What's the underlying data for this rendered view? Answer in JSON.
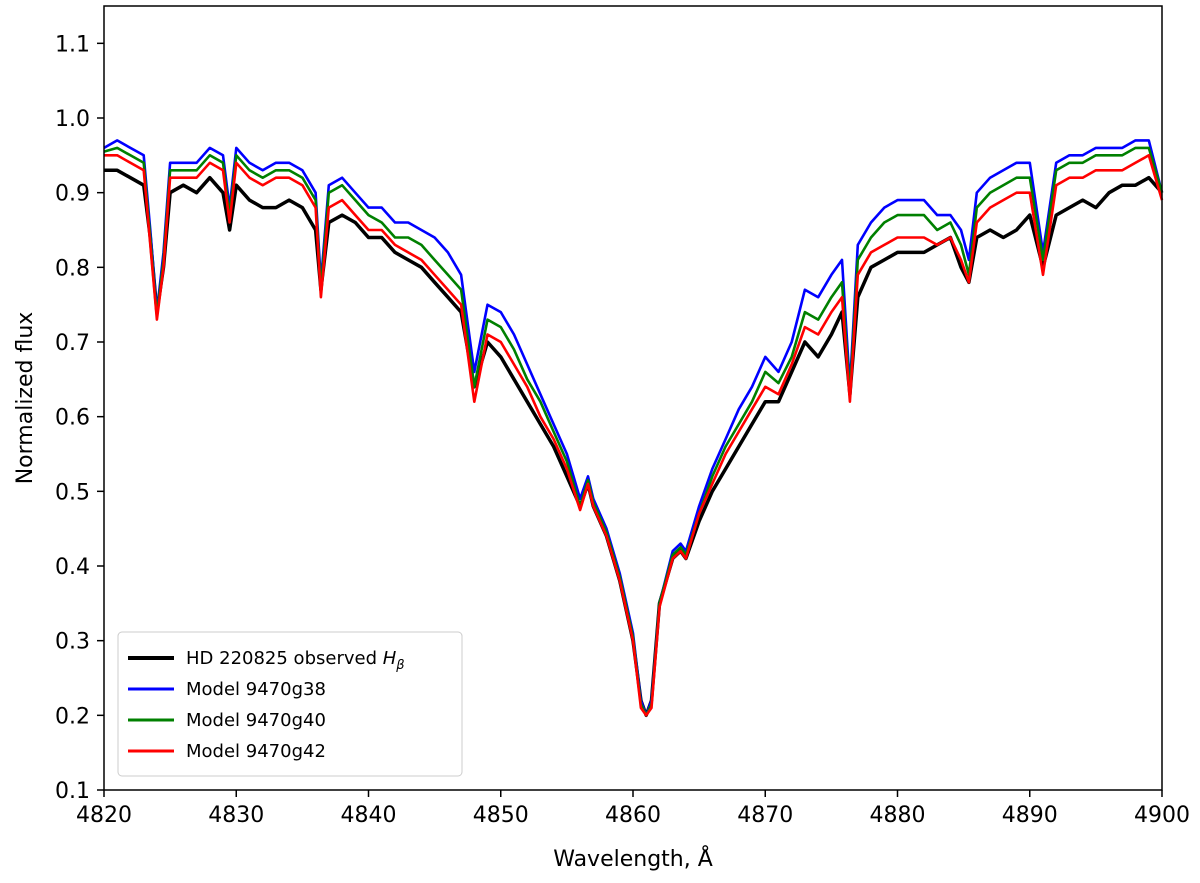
{
  "chart_data": {
    "type": "line",
    "title": "",
    "xlabel": "Wavelength, Å",
    "ylabel": "Normalized flux",
    "xlim": [
      4820,
      4900
    ],
    "ylim": [
      0.1,
      1.15
    ],
    "xticks": [
      "4820",
      "4830",
      "4840",
      "4850",
      "4860",
      "4870",
      "4880",
      "4890",
      "4900"
    ],
    "yticks": [
      "0.1",
      "0.2",
      "0.3",
      "0.4",
      "0.5",
      "0.6",
      "0.7",
      "0.8",
      "0.9",
      "1.0",
      "1.1"
    ],
    "grid": false,
    "legend_position": "lower-left",
    "series": [
      {
        "name": "HD 220825 observed",
        "name_subscript": "β",
        "name_symbol": "H",
        "color": "#000000",
        "x": [
          4820,
          4821,
          4822,
          4823,
          4823.5,
          4824,
          4824.5,
          4825,
          4826,
          4827,
          4828,
          4829,
          4829.5,
          4830,
          4831,
          4832,
          4833,
          4834,
          4835,
          4836,
          4836.4,
          4837,
          4838,
          4839,
          4840,
          4841,
          4842,
          4843,
          4844,
          4845,
          4846,
          4847,
          4848,
          4849,
          4850,
          4851,
          4852,
          4853,
          4854,
          4855,
          4856,
          4856.6,
          4857,
          4858,
          4859,
          4860,
          4860.6,
          4861,
          4861.4,
          4862,
          4863,
          4863.6,
          4864,
          4865,
          4866,
          4867,
          4868,
          4869,
          4870,
          4871,
          4872,
          4873,
          4874,
          4875,
          4875.8,
          4876.4,
          4877,
          4878,
          4879,
          4880,
          4881,
          4882,
          4883,
          4884,
          4884.8,
          4885.4,
          4886,
          4887,
          4888,
          4889,
          4890,
          4891,
          4892,
          4893,
          4894,
          4895,
          4896,
          4897,
          4898,
          4899,
          4900
        ],
        "y": [
          0.93,
          0.93,
          0.92,
          0.91,
          0.84,
          0.74,
          0.8,
          0.9,
          0.91,
          0.9,
          0.92,
          0.9,
          0.85,
          0.91,
          0.89,
          0.88,
          0.88,
          0.89,
          0.88,
          0.85,
          0.77,
          0.86,
          0.87,
          0.86,
          0.84,
          0.84,
          0.82,
          0.81,
          0.8,
          0.78,
          0.76,
          0.74,
          0.64,
          0.7,
          0.68,
          0.65,
          0.62,
          0.59,
          0.56,
          0.52,
          0.48,
          0.51,
          0.48,
          0.44,
          0.38,
          0.3,
          0.22,
          0.2,
          0.22,
          0.35,
          0.41,
          0.42,
          0.41,
          0.46,
          0.5,
          0.53,
          0.56,
          0.59,
          0.62,
          0.62,
          0.66,
          0.7,
          0.68,
          0.71,
          0.74,
          0.63,
          0.76,
          0.8,
          0.81,
          0.82,
          0.82,
          0.82,
          0.83,
          0.84,
          0.8,
          0.78,
          0.84,
          0.85,
          0.84,
          0.85,
          0.87,
          0.8,
          0.87,
          0.88,
          0.89,
          0.88,
          0.9,
          0.91,
          0.91,
          0.92,
          0.9
        ]
      },
      {
        "name": "Model 9470g38",
        "color": "#0000ff",
        "x": [
          4820,
          4821,
          4822,
          4823,
          4823.5,
          4824,
          4824.5,
          4825,
          4826,
          4827,
          4828,
          4829,
          4829.5,
          4830,
          4831,
          4832,
          4833,
          4834,
          4835,
          4836,
          4836.4,
          4837,
          4838,
          4839,
          4840,
          4841,
          4842,
          4843,
          4844,
          4845,
          4846,
          4847,
          4848,
          4849,
          4850,
          4851,
          4852,
          4853,
          4854,
          4855,
          4856,
          4856.6,
          4857,
          4858,
          4859,
          4860,
          4860.6,
          4861,
          4861.4,
          4862,
          4863,
          4863.6,
          4864,
          4865,
          4866,
          4867,
          4868,
          4869,
          4870,
          4871,
          4872,
          4873,
          4874,
          4875,
          4875.8,
          4876.4,
          4877,
          4878,
          4879,
          4880,
          4881,
          4882,
          4883,
          4884,
          4884.8,
          4885.4,
          4886,
          4887,
          4888,
          4889,
          4890,
          4891,
          4892,
          4893,
          4894,
          4895,
          4896,
          4897,
          4898,
          4899,
          4900
        ],
        "y": [
          0.96,
          0.97,
          0.96,
          0.95,
          0.85,
          0.74,
          0.82,
          0.94,
          0.94,
          0.94,
          0.96,
          0.95,
          0.88,
          0.96,
          0.94,
          0.93,
          0.94,
          0.94,
          0.93,
          0.9,
          0.78,
          0.91,
          0.92,
          0.9,
          0.88,
          0.88,
          0.86,
          0.86,
          0.85,
          0.84,
          0.82,
          0.79,
          0.66,
          0.75,
          0.74,
          0.71,
          0.67,
          0.63,
          0.59,
          0.55,
          0.49,
          0.52,
          0.49,
          0.45,
          0.39,
          0.31,
          0.22,
          0.2,
          0.22,
          0.35,
          0.42,
          0.43,
          0.42,
          0.48,
          0.53,
          0.57,
          0.61,
          0.64,
          0.68,
          0.66,
          0.7,
          0.77,
          0.76,
          0.79,
          0.81,
          0.64,
          0.83,
          0.86,
          0.88,
          0.89,
          0.89,
          0.89,
          0.87,
          0.87,
          0.85,
          0.81,
          0.9,
          0.92,
          0.93,
          0.94,
          0.94,
          0.82,
          0.94,
          0.95,
          0.95,
          0.96,
          0.96,
          0.96,
          0.97,
          0.97,
          0.9
        ]
      },
      {
        "name": "Model 9470g40",
        "color": "#008000",
        "x": [
          4820,
          4821,
          4822,
          4823,
          4823.5,
          4824,
          4824.5,
          4825,
          4826,
          4827,
          4828,
          4829,
          4829.5,
          4830,
          4831,
          4832,
          4833,
          4834,
          4835,
          4836,
          4836.4,
          4837,
          4838,
          4839,
          4840,
          4841,
          4842,
          4843,
          4844,
          4845,
          4846,
          4847,
          4848,
          4849,
          4850,
          4851,
          4852,
          4853,
          4854,
          4855,
          4856,
          4856.6,
          4857,
          4858,
          4859,
          4860,
          4860.6,
          4861,
          4861.4,
          4862,
          4863,
          4863.6,
          4864,
          4865,
          4866,
          4867,
          4868,
          4869,
          4870,
          4871,
          4872,
          4873,
          4874,
          4875,
          4875.8,
          4876.4,
          4877,
          4878,
          4879,
          4880,
          4881,
          4882,
          4883,
          4884,
          4884.8,
          4885.4,
          4886,
          4887,
          4888,
          4889,
          4890,
          4891,
          4892,
          4893,
          4894,
          4895,
          4896,
          4897,
          4898,
          4899,
          4900
        ],
        "y": [
          0.955,
          0.96,
          0.95,
          0.94,
          0.84,
          0.735,
          0.81,
          0.93,
          0.93,
          0.93,
          0.95,
          0.94,
          0.87,
          0.95,
          0.93,
          0.92,
          0.93,
          0.93,
          0.92,
          0.89,
          0.77,
          0.9,
          0.91,
          0.89,
          0.87,
          0.86,
          0.84,
          0.84,
          0.83,
          0.81,
          0.79,
          0.77,
          0.64,
          0.73,
          0.72,
          0.69,
          0.65,
          0.62,
          0.58,
          0.54,
          0.48,
          0.515,
          0.485,
          0.445,
          0.385,
          0.305,
          0.215,
          0.2,
          0.215,
          0.35,
          0.415,
          0.425,
          0.415,
          0.47,
          0.52,
          0.56,
          0.59,
          0.62,
          0.66,
          0.645,
          0.68,
          0.74,
          0.73,
          0.76,
          0.78,
          0.63,
          0.81,
          0.84,
          0.86,
          0.87,
          0.87,
          0.87,
          0.85,
          0.86,
          0.83,
          0.79,
          0.88,
          0.9,
          0.91,
          0.92,
          0.92,
          0.81,
          0.93,
          0.94,
          0.94,
          0.95,
          0.95,
          0.95,
          0.96,
          0.96,
          0.9
        ]
      },
      {
        "name": "Model 9470g42",
        "color": "#ff0000",
        "x": [
          4820,
          4821,
          4822,
          4823,
          4823.5,
          4824,
          4824.5,
          4825,
          4826,
          4827,
          4828,
          4829,
          4829.5,
          4830,
          4831,
          4832,
          4833,
          4834,
          4835,
          4836,
          4836.4,
          4837,
          4838,
          4839,
          4840,
          4841,
          4842,
          4843,
          4844,
          4845,
          4846,
          4847,
          4848,
          4849,
          4850,
          4851,
          4852,
          4853,
          4854,
          4855,
          4856,
          4856.6,
          4857,
          4858,
          4859,
          4860,
          4860.6,
          4861,
          4861.4,
          4862,
          4863,
          4863.6,
          4864,
          4865,
          4866,
          4867,
          4868,
          4869,
          4870,
          4871,
          4872,
          4873,
          4874,
          4875,
          4875.8,
          4876.4,
          4877,
          4878,
          4879,
          4880,
          4881,
          4882,
          4883,
          4884,
          4884.8,
          4885.4,
          4886,
          4887,
          4888,
          4889,
          4890,
          4891,
          4892,
          4893,
          4894,
          4895,
          4896,
          4897,
          4898,
          4899,
          4900
        ],
        "y": [
          0.95,
          0.95,
          0.94,
          0.93,
          0.83,
          0.73,
          0.8,
          0.92,
          0.92,
          0.92,
          0.94,
          0.93,
          0.86,
          0.94,
          0.92,
          0.91,
          0.92,
          0.92,
          0.91,
          0.88,
          0.76,
          0.88,
          0.89,
          0.87,
          0.85,
          0.85,
          0.83,
          0.82,
          0.81,
          0.79,
          0.77,
          0.75,
          0.62,
          0.71,
          0.7,
          0.67,
          0.64,
          0.6,
          0.57,
          0.53,
          0.475,
          0.51,
          0.48,
          0.44,
          0.38,
          0.3,
          0.21,
          0.2,
          0.21,
          0.345,
          0.41,
          0.42,
          0.41,
          0.47,
          0.51,
          0.55,
          0.58,
          0.61,
          0.64,
          0.63,
          0.67,
          0.72,
          0.71,
          0.74,
          0.76,
          0.62,
          0.79,
          0.82,
          0.83,
          0.84,
          0.84,
          0.84,
          0.83,
          0.84,
          0.81,
          0.78,
          0.86,
          0.88,
          0.89,
          0.9,
          0.9,
          0.79,
          0.91,
          0.92,
          0.92,
          0.93,
          0.93,
          0.93,
          0.94,
          0.95,
          0.89
        ]
      }
    ]
  }
}
